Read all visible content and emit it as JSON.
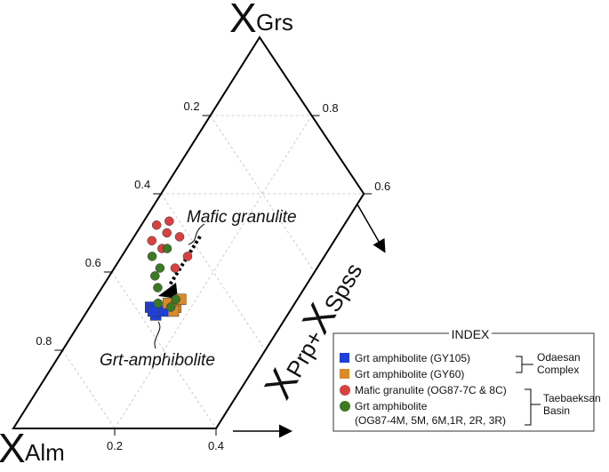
{
  "chart_data": {
    "type": "ternary",
    "apex_label": {
      "main": "X",
      "sub": "Grs"
    },
    "left_label": {
      "main": "X",
      "sub": "Alm"
    },
    "right_label": {
      "parts": [
        "X",
        "Prp+",
        "X",
        "Spss"
      ]
    },
    "alm_ticks": [
      0.2,
      0.4,
      0.6,
      0.8
    ],
    "grs_ticks": [
      0.8,
      0.6
    ],
    "prp_spss_ticks": [
      0.2,
      0.4
    ],
    "prp_spss_max": 0.4,
    "grid": true,
    "annotations": [
      "Mafic granulite",
      "Grt-amphibolite"
    ],
    "legend_title": "INDEX",
    "groups": [
      [
        "Odaesan",
        "Complex"
      ],
      [
        "Taebaeksan",
        "Basin"
      ]
    ],
    "series": [
      {
        "name": "Grt amphibolite (GY105)",
        "marker": "square",
        "color": "#1f3fd8",
        "grs": [
          0.31,
          0.29,
          0.3,
          0.3
        ],
        "prp_spss": [
          0.12,
          0.14,
          0.15,
          0.13
        ]
      },
      {
        "name": "Grt amphibolite (GY60)",
        "marker": "square",
        "color": "#d98a2b",
        "grs": [
          0.32,
          0.31,
          0.33,
          0.3
        ],
        "prp_spss": [
          0.15,
          0.17,
          0.17,
          0.17
        ]
      },
      {
        "name": "Mafic granulite (OG87-7C & 8C)",
        "marker": "circle",
        "color": "#d94040",
        "grs": [
          0.52,
          0.5,
          0.49,
          0.44,
          0.46,
          0.41,
          0.48,
          0.53
        ],
        "prp_spss": [
          0.03,
          0.06,
          0.09,
          0.13,
          0.07,
          0.12,
          0.04,
          0.05
        ]
      },
      {
        "name": [
          "Grt amphibolite",
          "(OG87-4M, 5M, 6M,1R, 2R, 3R)"
        ],
        "marker": "circle",
        "color": "#3b7a22",
        "grs": [
          0.44,
          0.39,
          0.36,
          0.41,
          0.32,
          0.31,
          0.33,
          0.46
        ],
        "prp_spss": [
          0.06,
          0.09,
          0.11,
          0.09,
          0.13,
          0.16,
          0.16,
          0.08
        ]
      }
    ]
  }
}
